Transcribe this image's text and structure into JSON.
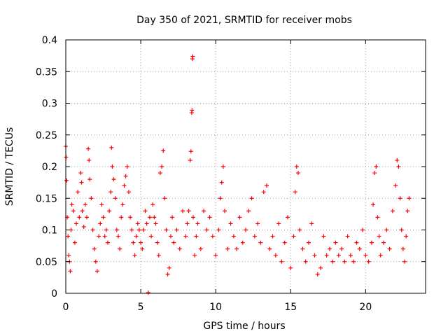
{
  "chart_data": {
    "type": "scatter",
    "title": "Day 350 of 2021, SRMTID for receiver mobs",
    "xlabel": "GPS time / hours",
    "ylabel": "SRMTID / TECUs",
    "xlim": [
      0,
      24
    ],
    "ylim": [
      0,
      0.4
    ],
    "xticks": [
      0,
      5,
      10,
      15,
      20
    ],
    "xtick_labels": [
      "0",
      "5",
      "10",
      "15",
      "20"
    ],
    "yticks": [
      0,
      0.05,
      0.1,
      0.15,
      0.2,
      0.25,
      0.3,
      0.35,
      0.4
    ],
    "ytick_labels": [
      "0",
      "0.05",
      "0.1",
      "0.15",
      "0.2",
      "0.25",
      "0.3",
      "0.35",
      "0.4"
    ],
    "grid": true,
    "marker": "plus",
    "color": "#ff0000",
    "series": [
      {
        "name": "SRMTID",
        "points": [
          [
            0.0,
            0.232
          ],
          [
            0.02,
            0.215
          ],
          [
            0.05,
            0.178
          ],
          [
            0.1,
            0.12
          ],
          [
            0.15,
            0.09
          ],
          [
            0.2,
            0.06
          ],
          [
            0.25,
            0.05
          ],
          [
            0.3,
            0.035
          ],
          [
            0.35,
            0.1
          ],
          [
            0.4,
            0.14
          ],
          [
            0.5,
            0.13
          ],
          [
            0.6,
            0.08
          ],
          [
            0.7,
            0.11
          ],
          [
            0.8,
            0.16
          ],
          [
            0.9,
            0.12
          ],
          [
            1.0,
            0.19
          ],
          [
            1.05,
            0.175
          ],
          [
            1.1,
            0.13
          ],
          [
            1.2,
            0.105
          ],
          [
            1.3,
            0.14
          ],
          [
            1.4,
            0.12
          ],
          [
            1.5,
            0.228
          ],
          [
            1.55,
            0.21
          ],
          [
            1.6,
            0.18
          ],
          [
            1.7,
            0.15
          ],
          [
            1.8,
            0.1
          ],
          [
            1.9,
            0.07
          ],
          [
            2.0,
            0.05
          ],
          [
            2.1,
            0.035
          ],
          [
            2.2,
            0.09
          ],
          [
            2.3,
            0.11
          ],
          [
            2.4,
            0.14
          ],
          [
            2.5,
            0.12
          ],
          [
            2.6,
            0.09
          ],
          [
            2.7,
            0.1
          ],
          [
            2.8,
            0.08
          ],
          [
            2.9,
            0.13
          ],
          [
            3.0,
            0.16
          ],
          [
            3.05,
            0.23
          ],
          [
            3.1,
            0.2
          ],
          [
            3.2,
            0.18
          ],
          [
            3.3,
            0.15
          ],
          [
            3.4,
            0.1
          ],
          [
            3.5,
            0.09
          ],
          [
            3.6,
            0.07
          ],
          [
            3.7,
            0.12
          ],
          [
            3.8,
            0.14
          ],
          [
            3.9,
            0.17
          ],
          [
            4.0,
            0.185
          ],
          [
            4.1,
            0.2
          ],
          [
            4.2,
            0.16
          ],
          [
            4.3,
            0.12
          ],
          [
            4.4,
            0.1
          ],
          [
            4.5,
            0.08
          ],
          [
            4.6,
            0.06
          ],
          [
            4.7,
            0.09
          ],
          [
            4.8,
            0.11
          ],
          [
            4.9,
            0.1
          ],
          [
            5.0,
            0.08
          ],
          [
            5.1,
            0.07
          ],
          [
            5.2,
            0.1
          ],
          [
            5.3,
            0.13
          ],
          [
            5.4,
            0.11
          ],
          [
            5.5,
            0.001
          ],
          [
            5.6,
            0.12
          ],
          [
            5.7,
            0.09
          ],
          [
            5.8,
            0.14
          ],
          [
            5.9,
            0.12
          ],
          [
            6.0,
            0.11
          ],
          [
            6.1,
            0.08
          ],
          [
            6.2,
            0.06
          ],
          [
            6.3,
            0.19
          ],
          [
            6.4,
            0.2
          ],
          [
            6.5,
            0.225
          ],
          [
            6.6,
            0.15
          ],
          [
            6.7,
            0.1
          ],
          [
            6.8,
            0.03
          ],
          [
            6.9,
            0.04
          ],
          [
            7.0,
            0.09
          ],
          [
            7.1,
            0.12
          ],
          [
            7.2,
            0.08
          ],
          [
            7.4,
            0.1
          ],
          [
            7.6,
            0.07
          ],
          [
            7.8,
            0.13
          ],
          [
            8.0,
            0.09
          ],
          [
            8.1,
            0.11
          ],
          [
            8.2,
            0.13
          ],
          [
            8.3,
            0.21
          ],
          [
            8.35,
            0.224
          ],
          [
            8.4,
            0.285
          ],
          [
            8.42,
            0.289
          ],
          [
            8.45,
            0.37
          ],
          [
            8.47,
            0.374
          ],
          [
            8.5,
            0.12
          ],
          [
            8.6,
            0.06
          ],
          [
            8.7,
            0.09
          ],
          [
            8.8,
            0.11
          ],
          [
            9.0,
            0.07
          ],
          [
            9.2,
            0.13
          ],
          [
            9.4,
            0.1
          ],
          [
            9.6,
            0.12
          ],
          [
            9.8,
            0.09
          ],
          [
            10.0,
            0.06
          ],
          [
            10.2,
            0.1
          ],
          [
            10.3,
            0.15
          ],
          [
            10.4,
            0.175
          ],
          [
            10.5,
            0.2
          ],
          [
            10.6,
            0.13
          ],
          [
            10.8,
            0.07
          ],
          [
            11.0,
            0.11
          ],
          [
            11.2,
            0.09
          ],
          [
            11.4,
            0.07
          ],
          [
            11.6,
            0.12
          ],
          [
            11.8,
            0.08
          ],
          [
            12.0,
            0.1
          ],
          [
            12.2,
            0.13
          ],
          [
            12.4,
            0.15
          ],
          [
            12.6,
            0.09
          ],
          [
            12.8,
            0.11
          ],
          [
            13.0,
            0.08
          ],
          [
            13.2,
            0.16
          ],
          [
            13.4,
            0.17
          ],
          [
            13.6,
            0.07
          ],
          [
            13.8,
            0.09
          ],
          [
            14.0,
            0.06
          ],
          [
            14.2,
            0.11
          ],
          [
            14.4,
            0.05
          ],
          [
            14.6,
            0.08
          ],
          [
            14.8,
            0.12
          ],
          [
            15.0,
            0.04
          ],
          [
            15.2,
            0.09
          ],
          [
            15.3,
            0.16
          ],
          [
            15.4,
            0.2
          ],
          [
            15.5,
            0.19
          ],
          [
            15.6,
            0.1
          ],
          [
            15.8,
            0.07
          ],
          [
            16.0,
            0.05
          ],
          [
            16.2,
            0.08
          ],
          [
            16.4,
            0.11
          ],
          [
            16.6,
            0.06
          ],
          [
            16.8,
            0.03
          ],
          [
            17.0,
            0.04
          ],
          [
            17.2,
            0.09
          ],
          [
            17.4,
            0.06
          ],
          [
            17.6,
            0.07
          ],
          [
            17.8,
            0.05
          ],
          [
            18.0,
            0.08
          ],
          [
            18.2,
            0.06
          ],
          [
            18.4,
            0.07
          ],
          [
            18.6,
            0.05
          ],
          [
            18.8,
            0.09
          ],
          [
            19.0,
            0.06
          ],
          [
            19.2,
            0.05
          ],
          [
            19.4,
            0.08
          ],
          [
            19.6,
            0.07
          ],
          [
            19.8,
            0.1
          ],
          [
            20.0,
            0.06
          ],
          [
            20.2,
            0.05
          ],
          [
            20.4,
            0.08
          ],
          [
            20.5,
            0.14
          ],
          [
            20.6,
            0.19
          ],
          [
            20.7,
            0.2
          ],
          [
            20.8,
            0.12
          ],
          [
            20.9,
            0.09
          ],
          [
            21.0,
            0.06
          ],
          [
            21.2,
            0.08
          ],
          [
            21.4,
            0.1
          ],
          [
            21.6,
            0.07
          ],
          [
            21.8,
            0.13
          ],
          [
            22.0,
            0.17
          ],
          [
            22.1,
            0.21
          ],
          [
            22.2,
            0.2
          ],
          [
            22.3,
            0.15
          ],
          [
            22.4,
            0.1
          ],
          [
            22.5,
            0.07
          ],
          [
            22.6,
            0.05
          ],
          [
            22.7,
            0.09
          ],
          [
            22.8,
            0.13
          ],
          [
            22.9,
            0.15
          ]
        ]
      }
    ]
  }
}
